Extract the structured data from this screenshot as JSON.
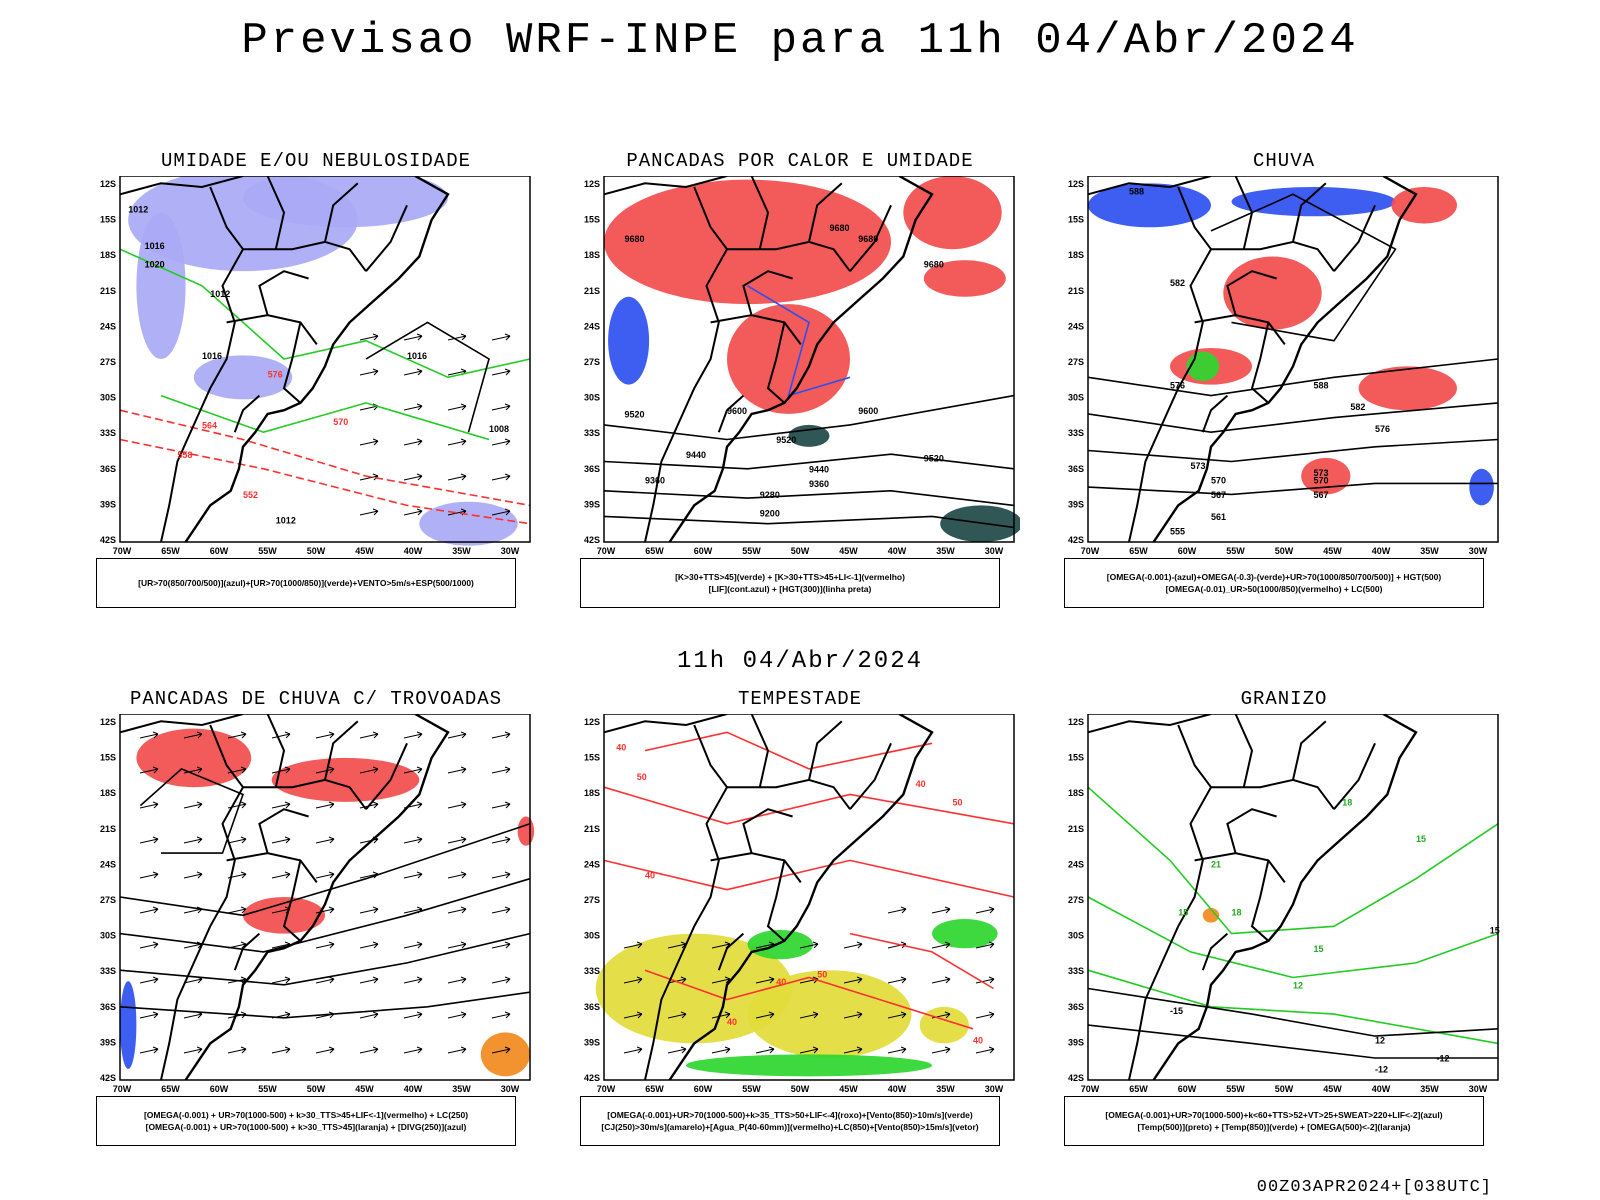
{
  "title": "Previsao WRF-INPE  para 11h 04/Abr/2024",
  "date_label": "11h 04/Abr/2024",
  "run_stamp": "00Z03APR2024+[038UTC]",
  "axes": {
    "lat": [
      "12S",
      "15S",
      "18S",
      "21S",
      "24S",
      "27S",
      "30S",
      "33S",
      "36S",
      "39S",
      "42S"
    ],
    "lon": [
      "70W",
      "65W",
      "60W",
      "55W",
      "50W",
      "45W",
      "40W",
      "35W",
      "30W"
    ]
  },
  "colors": {
    "lavender": "#a9a9f5",
    "red": "#f24c4c",
    "blue": "#2e4ff0",
    "green": "#2ed62e",
    "yellow": "#e2dc3a",
    "orange": "#f28a1e",
    "darkteal": "#1e4848"
  },
  "panels": [
    {
      "id": "umidade",
      "title": "UMIDADE E/OU NEBULOSIDADE",
      "legend": [
        "[UR>70(850/700/500)](azul)+[UR>70(1000/850)](verde)+VENTO>5m/s+ESP(500/1000)"
      ],
      "labels": [
        "1012",
        "1016",
        "1020",
        "1012",
        "1016",
        "576",
        "570",
        "564",
        "558",
        "552",
        "1012",
        "1008",
        "1016"
      ]
    },
    {
      "id": "pancadas_calor",
      "title": "PANCADAS POR CALOR E UMIDADE",
      "legend": [
        "[K>30+TTS>45](verde) + [K>30+TTS>45+LI<-1](vermelho)",
        "[LIF](cont.azul) + [HGT(300)](linha preta)"
      ],
      "labels": [
        "9680",
        "9680",
        "9680",
        "9680",
        "9600",
        "9520",
        "9440",
        "9360",
        "9280",
        "9200",
        "9520",
        "9440",
        "9360",
        "9600",
        "9520"
      ]
    },
    {
      "id": "chuva",
      "title": "CHUVA",
      "legend": [
        "[OMEGA(-0.001)-(azul)+OMEGA(-0.3)-(verde)+UR>70(1000/850/700/500)] + HGT(500)",
        "[OMEGA(-0.01)_UR>50(1000/850)(vermelho) + LC(500)"
      ],
      "labels": [
        "588",
        "582",
        "576",
        "573",
        "570",
        "567",
        "561",
        "555",
        "588",
        "582",
        "576",
        "573",
        "570",
        "567"
      ]
    },
    {
      "id": "trovoadas",
      "title": "PANCADAS DE CHUVA C/ TROVOADAS",
      "legend": [
        "[OMEGA(-0.001) + UR>70(1000-500) + k>30_TTS>45+LIF<-1](vermelho) + LC(250)",
        "[OMEGA(-0.001) + UR>70(1000-500) + k>30_TTS>45](laranja) + [DIVG(250)](azul)"
      ],
      "labels": []
    },
    {
      "id": "tempestade",
      "title": "TEMPESTADE",
      "legend": [
        "[OMEGA(-0.001)+UR>70(1000-500)+k>35_TTS>50+LIF<-4](roxo)+[Vento(850)>10m/s](verde)",
        "[CJ(250)>30m/s](amarelo)+[Agua_P(40-60mm)](vermelho)+LC(850)+[Vento(850)>15m/s](vetor)"
      ],
      "labels": [
        "40",
        "50",
        "40",
        "50",
        "40",
        "40",
        "50",
        "40",
        "40"
      ]
    },
    {
      "id": "granizo",
      "title": "GRANIZO",
      "legend": [
        "[OMEGA(-0.001)+UR>70(1000-500)+k<60+TTS>52+VT>25+SWEAT>220+LIF<-2](azul)",
        "[Temp(500)](preto) + [Temp(850)](verde) + [OMEGA(500)<-2](laranja)"
      ],
      "labels": [
        "15",
        "18",
        "21",
        "15",
        "12",
        "18",
        "15",
        "-12",
        "-15",
        "-12",
        "15",
        "12"
      ]
    }
  ]
}
